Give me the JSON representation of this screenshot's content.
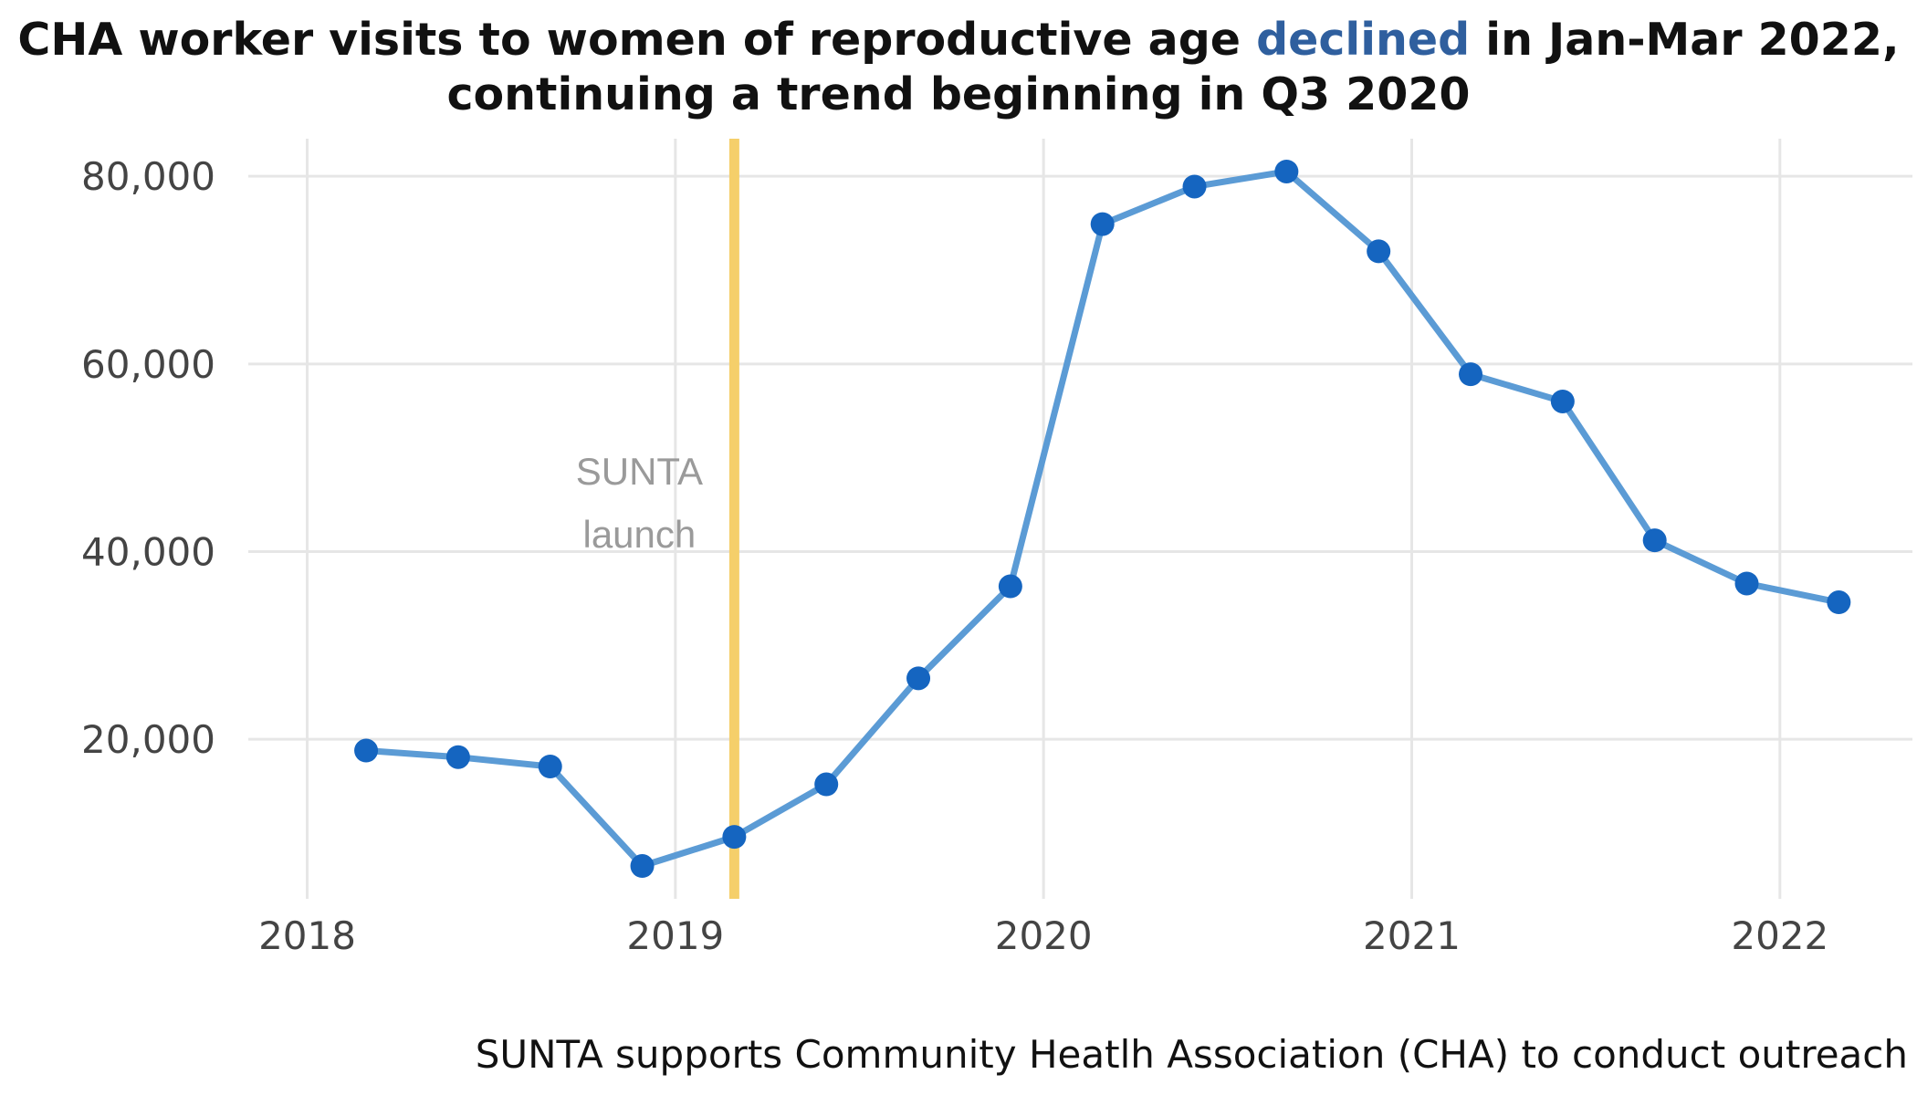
{
  "title": {
    "line1_before": "CHA worker visits to women of reproductive age ",
    "line1_highlight": "declined",
    "line1_after": " in Jan-Mar 2022,",
    "line2": "continuing a trend beginning in Q3 2020"
  },
  "caption": "SUNTA supports Community Heatlh Association (CHA) to conduct outreach",
  "colors": {
    "line": "#5b9bd5",
    "point": "#1565c0",
    "marker": "#f5cf6a",
    "highlight": "#2f5f9e",
    "grid": "#e6e6e6"
  },
  "chart_data": {
    "type": "line",
    "title": "CHA worker visits to women of reproductive age declined in Jan-Mar 2022, continuing a trend beginning in Q3 2020",
    "xlabel": "",
    "ylabel": "",
    "x_ticks": [
      {
        "value": 2018,
        "label": "2018"
      },
      {
        "value": 2019,
        "label": "2019"
      },
      {
        "value": 2020,
        "label": "2020"
      },
      {
        "value": 2021,
        "label": "2021"
      },
      {
        "value": 2022,
        "label": "2022"
      }
    ],
    "y_ticks": [
      {
        "value": 20000,
        "label": "20,000"
      },
      {
        "value": 40000,
        "label": "40,000"
      },
      {
        "value": 60000,
        "label": "60,000"
      },
      {
        "value": 80000,
        "label": "80,000"
      }
    ],
    "xlim": [
      2017.84,
      2022.36
    ],
    "ylim": [
      3000,
      84000
    ],
    "grid": true,
    "series": [
      {
        "x": [
          2018.16,
          2018.41,
          2018.66,
          2018.91,
          2019.16,
          2019.41,
          2019.66,
          2019.91,
          2020.16,
          2020.41,
          2020.66,
          2020.91,
          2021.16,
          2021.41,
          2021.66,
          2021.91,
          2022.16
        ],
        "values": [
          18800,
          18100,
          17100,
          6500,
          9600,
          15200,
          26500,
          36300,
          74900,
          78900,
          80500,
          72000,
          58900,
          56000,
          41200,
          36600,
          34600
        ]
      }
    ],
    "annotations": [
      {
        "type": "vline",
        "x": 2019.16,
        "label_lines": [
          "SUNTA",
          "launch"
        ]
      }
    ]
  }
}
